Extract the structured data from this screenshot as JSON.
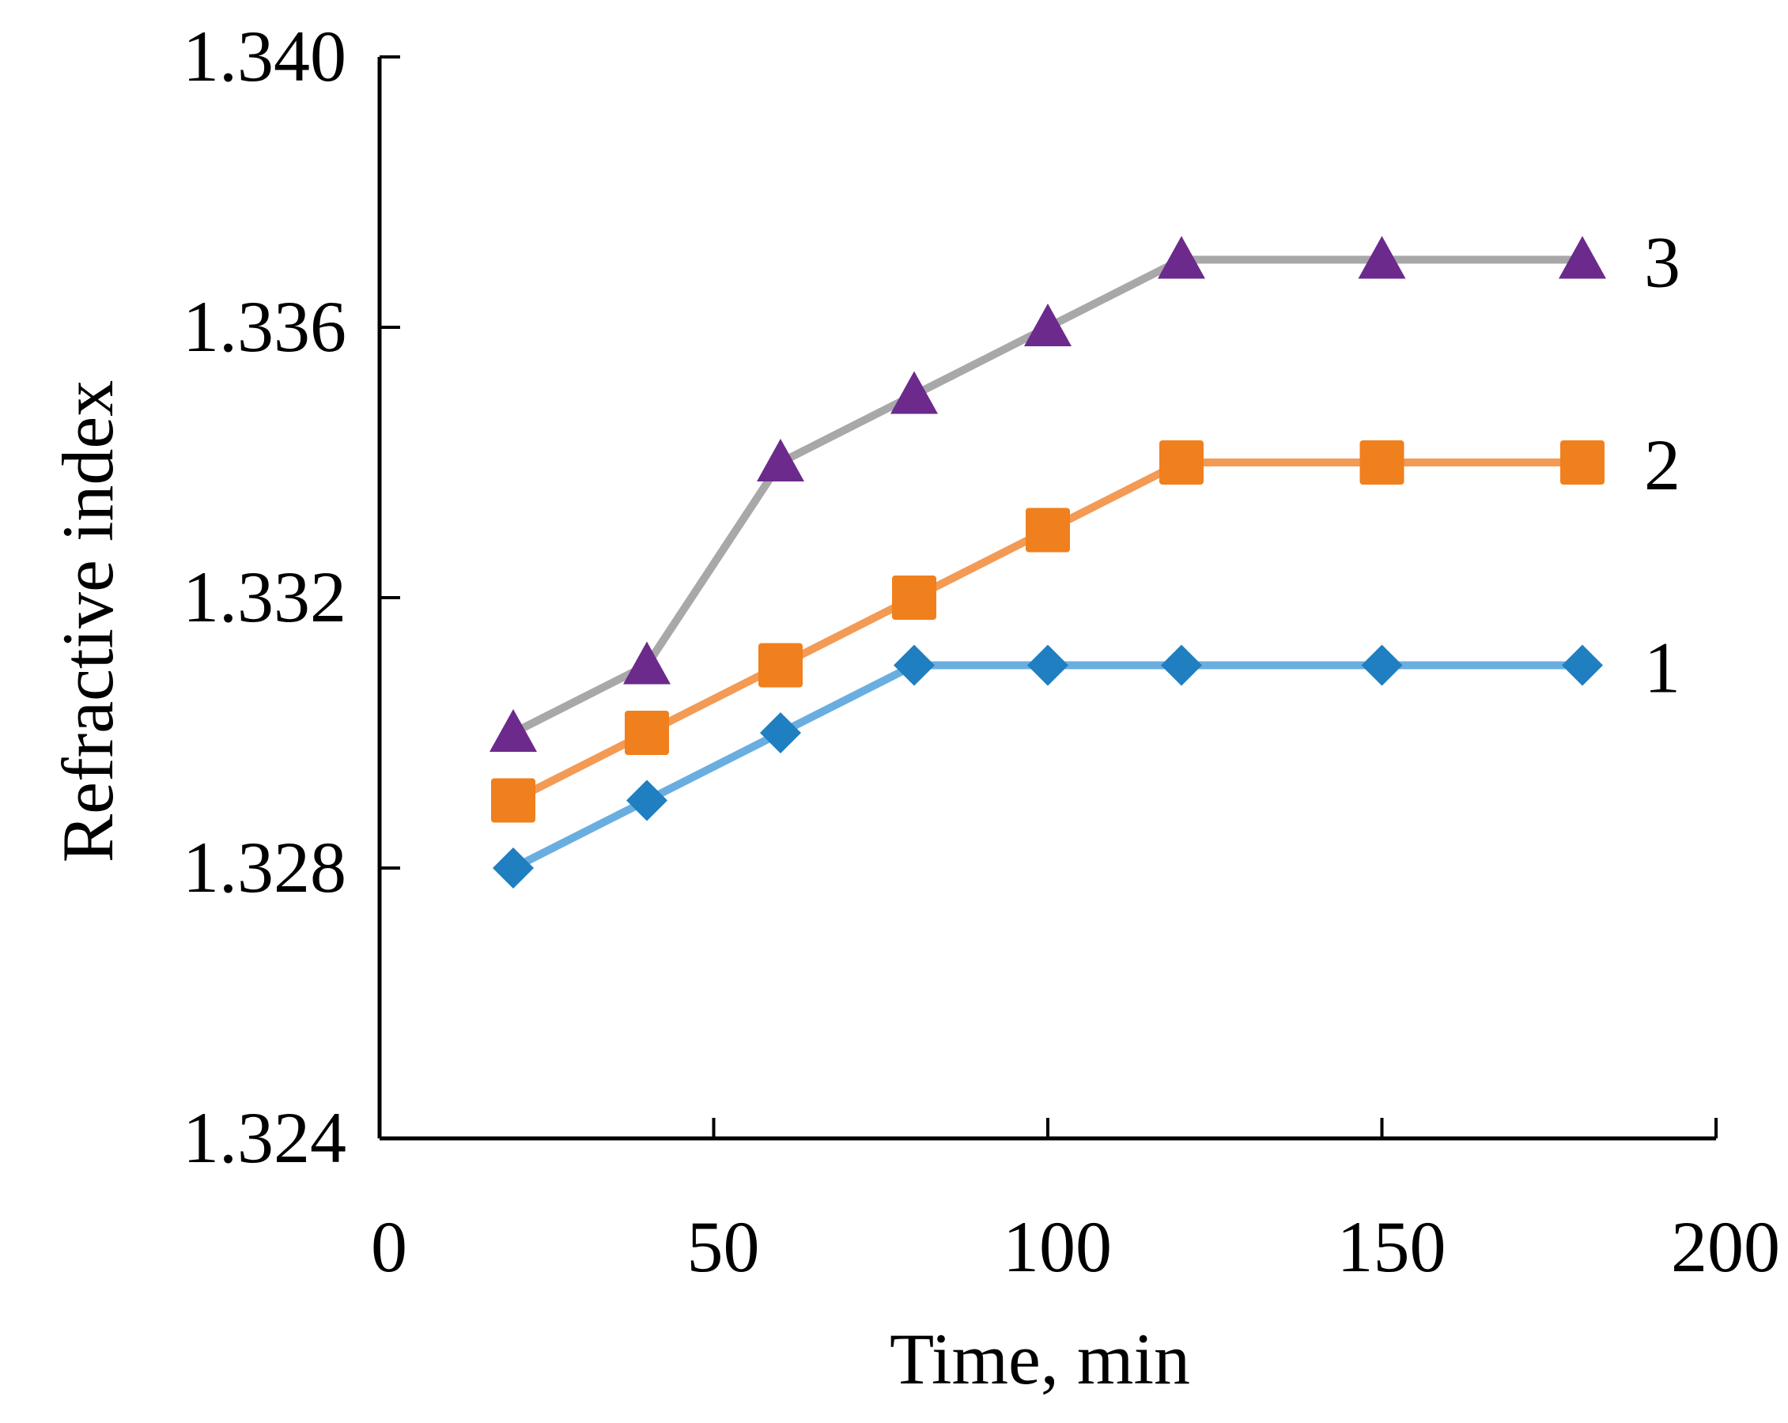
{
  "chart_data": {
    "type": "line",
    "title": "",
    "xlabel": "Time, min",
    "ylabel": "Refractive index",
    "xlim": [
      0,
      200
    ],
    "ylim": [
      1.324,
      1.34
    ],
    "xticks": [
      0,
      50,
      100,
      150,
      200
    ],
    "xtick_labels": [
      "0",
      "50",
      "100",
      "150",
      "200"
    ],
    "yticks": [
      1.324,
      1.328,
      1.332,
      1.336,
      1.34
    ],
    "ytick_labels": [
      "1.324",
      "1.328",
      "1.332",
      "1.336",
      "1.340"
    ],
    "grid": false,
    "series": [
      {
        "name": "1",
        "color": "#1f7fc0",
        "line_color": "#6aaee0",
        "marker": "diamond",
        "x": [
          20,
          40,
          60,
          80,
          100,
          120,
          150,
          180
        ],
        "y": [
          1.328,
          1.329,
          1.33,
          1.331,
          1.331,
          1.331,
          1.331,
          1.331
        ]
      },
      {
        "name": "2",
        "color": "#f07f1e",
        "line_color": "#f39a55",
        "marker": "square",
        "x": [
          20,
          40,
          60,
          80,
          100,
          120,
          150,
          180
        ],
        "y": [
          1.329,
          1.33,
          1.331,
          1.332,
          1.333,
          1.334,
          1.334,
          1.334
        ]
      },
      {
        "name": "3",
        "color": "#6b2a8c",
        "line_color": "#a8a8a8",
        "marker": "triangle",
        "x": [
          20,
          40,
          60,
          80,
          100,
          120,
          150,
          180
        ],
        "y": [
          1.33,
          1.331,
          1.334,
          1.335,
          1.336,
          1.337,
          1.337,
          1.337
        ]
      }
    ]
  }
}
